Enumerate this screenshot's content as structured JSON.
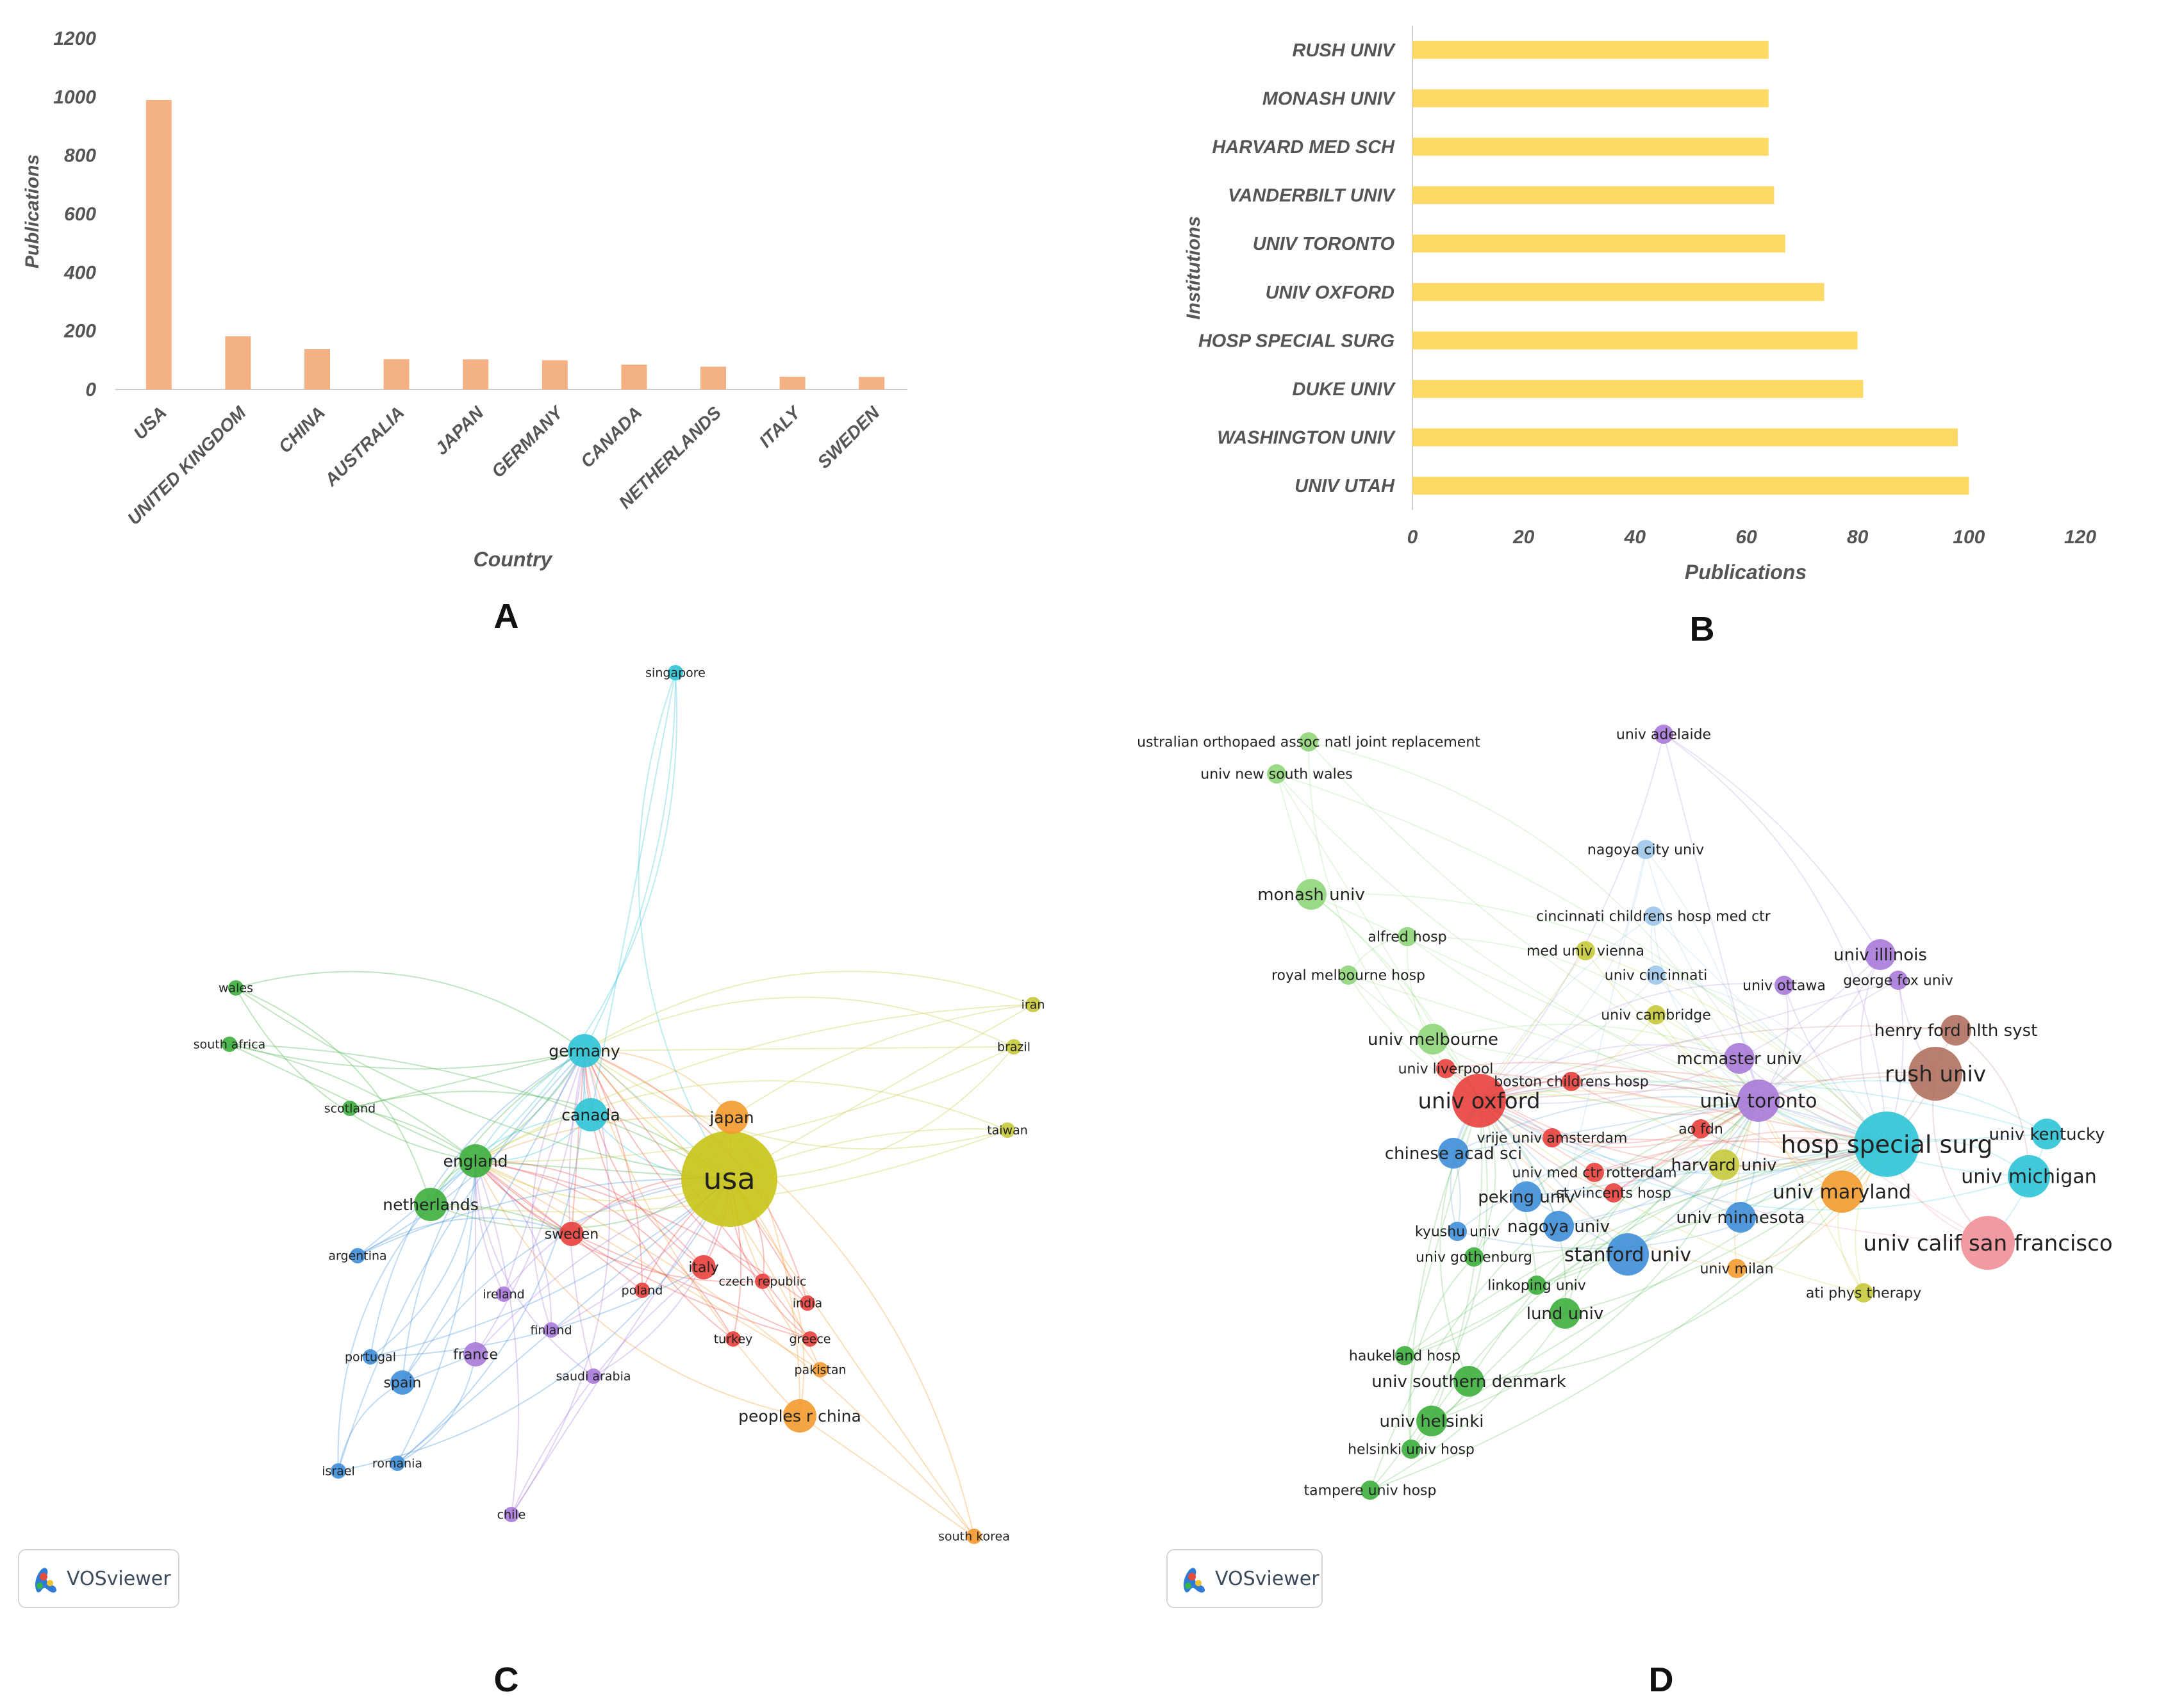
{
  "charts": {
    "A": {
      "type": "bar",
      "categories": [
        "USA",
        "UNITED KINGDOM",
        "CHINA",
        "AUSTRALIA",
        "JAPAN",
        "GERMANY",
        "CANADA",
        "NETHERLANDS",
        "ITALY",
        "SWEDEN"
      ],
      "values": [
        990,
        182,
        138,
        104,
        103,
        100,
        85,
        78,
        44,
        43
      ],
      "xlabel": "Country",
      "ylabel": "Publications",
      "ylim": [
        0,
        1200
      ],
      "yticks": [
        0,
        200,
        400,
        600,
        800,
        1000,
        1200
      ],
      "color": "#f4b183",
      "panel_label": "A"
    },
    "B": {
      "type": "bar-horizontal",
      "categories": [
        "RUSH UNIV",
        "MONASH UNIV",
        "HARVARD MED SCH",
        "VANDERBILT UNIV",
        "UNIV TORONTO",
        "UNIV OXFORD",
        "HOSP SPECIAL SURG",
        "DUKE UNIV",
        "WASHINGTON UNIV",
        "UNIV UTAH"
      ],
      "values": [
        64,
        64,
        64,
        65,
        67,
        74,
        80,
        81,
        98,
        100
      ],
      "xlabel": "Publications",
      "ylabel": "Institutions",
      "xlim": [
        0,
        120
      ],
      "xticks": [
        0,
        20,
        40,
        60,
        80,
        100,
        120
      ],
      "color": "#ffd966",
      "panel_label": "B"
    },
    "C": {
      "type": "network",
      "panel_label": "C",
      "brand": "VOSviewer",
      "nodes": [
        {
          "label": "usa",
          "cluster": "yellow",
          "weight": 10
        },
        {
          "label": "england",
          "cluster": "green",
          "weight": 3
        },
        {
          "label": "netherlands",
          "cluster": "green",
          "weight": 3
        },
        {
          "label": "germany",
          "cluster": "cyan",
          "weight": 3
        },
        {
          "label": "canada",
          "cluster": "cyan",
          "weight": 3
        },
        {
          "label": "japan",
          "cluster": "orange",
          "weight": 3
        },
        {
          "label": "sweden",
          "cluster": "red",
          "weight": 2
        },
        {
          "label": "italy",
          "cluster": "red",
          "weight": 2
        },
        {
          "label": "poland",
          "cluster": "red",
          "weight": 1
        },
        {
          "label": "czech republic",
          "cluster": "red",
          "weight": 1
        },
        {
          "label": "india",
          "cluster": "red",
          "weight": 1
        },
        {
          "label": "greece",
          "cluster": "red",
          "weight": 1
        },
        {
          "label": "turkey",
          "cluster": "red",
          "weight": 1
        },
        {
          "label": "pakistan",
          "cluster": "orange",
          "weight": 1
        },
        {
          "label": "peoples r china",
          "cluster": "orange",
          "weight": 3
        },
        {
          "label": "south korea",
          "cluster": "orange",
          "weight": 1
        },
        {
          "label": "ireland",
          "cluster": "purple",
          "weight": 1
        },
        {
          "label": "finland",
          "cluster": "purple",
          "weight": 1
        },
        {
          "label": "france",
          "cluster": "purple",
          "weight": 2
        },
        {
          "label": "saudi arabia",
          "cluster": "purple",
          "weight": 1
        },
        {
          "label": "chile",
          "cluster": "purple",
          "weight": 1
        },
        {
          "label": "spain",
          "cluster": "blue",
          "weight": 2
        },
        {
          "label": "portugal",
          "cluster": "blue",
          "weight": 1
        },
        {
          "label": "argentina",
          "cluster": "blue",
          "weight": 1
        },
        {
          "label": "israel",
          "cluster": "blue",
          "weight": 1
        },
        {
          "label": "romania",
          "cluster": "blue",
          "weight": 1
        },
        {
          "label": "scotland",
          "cluster": "green",
          "weight": 1
        },
        {
          "label": "wales",
          "cluster": "green",
          "weight": 1
        },
        {
          "label": "south africa",
          "cluster": "green",
          "weight": 1
        },
        {
          "label": "singapore",
          "cluster": "cyan",
          "weight": 1
        },
        {
          "label": "iran",
          "cluster": "olive",
          "weight": 1
        },
        {
          "label": "brazil",
          "cluster": "olive",
          "weight": 1
        },
        {
          "label": "taiwan",
          "cluster": "olive",
          "weight": 1
        }
      ]
    },
    "D": {
      "type": "network",
      "panel_label": "D",
      "brand": "VOSviewer",
      "nodes": [
        {
          "label": "univ adelaide",
          "cluster": "purple",
          "weight": 1
        },
        {
          "label": "ustralian orthopaed assoc natl joint replacement",
          "cluster": "lightgreen",
          "weight": 1
        },
        {
          "label": "univ new south wales",
          "cluster": "lightgreen",
          "weight": 1
        },
        {
          "label": "nagoya city univ",
          "cluster": "lightblue",
          "weight": 1
        },
        {
          "label": "cincinnati childrens hosp med ctr",
          "cluster": "lightblue",
          "weight": 1
        },
        {
          "label": "monash univ",
          "cluster": "lightgreen",
          "weight": 2
        },
        {
          "label": "alfred hosp",
          "cluster": "lightgreen",
          "weight": 1
        },
        {
          "label": "med univ vienna",
          "cluster": "olive",
          "weight": 1
        },
        {
          "label": "univ illinois",
          "cluster": "purple",
          "weight": 2
        },
        {
          "label": "royal melbourne hosp",
          "cluster": "lightgreen",
          "weight": 1
        },
        {
          "label": "univ cincinnati",
          "cluster": "lightblue",
          "weight": 1
        },
        {
          "label": "univ ottawa",
          "cluster": "purple",
          "weight": 1
        },
        {
          "label": "george fox univ",
          "cluster": "purple",
          "weight": 1
        },
        {
          "label": "univ cambridge",
          "cluster": "olive",
          "weight": 1
        },
        {
          "label": "henry ford hlth syst",
          "cluster": "brown",
          "weight": 2
        },
        {
          "label": "univ melbourne",
          "cluster": "lightgreen",
          "weight": 2
        },
        {
          "label": "mcmaster univ",
          "cluster": "purple",
          "weight": 2
        },
        {
          "label": "rush univ",
          "cluster": "brown",
          "weight": 4
        },
        {
          "label": "univ liverpool",
          "cluster": "red",
          "weight": 1
        },
        {
          "label": "boston childrens hosp",
          "cluster": "red",
          "weight": 1
        },
        {
          "label": "univ oxford",
          "cluster": "red",
          "weight": 4
        },
        {
          "label": "univ toronto",
          "cluster": "purple",
          "weight": 3
        },
        {
          "label": "ao fdn",
          "cluster": "red",
          "weight": 1
        },
        {
          "label": "vrije univ amsterdam",
          "cluster": "red",
          "weight": 1
        },
        {
          "label": "hosp special surg",
          "cluster": "cyan",
          "weight": 5
        },
        {
          "label": "univ kentucky",
          "cluster": "cyan",
          "weight": 2
        },
        {
          "label": "chinese acad sci",
          "cluster": "blue",
          "weight": 2
        },
        {
          "label": "harvard univ",
          "cluster": "olive",
          "weight": 2
        },
        {
          "label": "univ med ctr rotterdam",
          "cluster": "red",
          "weight": 1
        },
        {
          "label": "univ michigan",
          "cluster": "cyan",
          "weight": 3
        },
        {
          "label": "peking univ",
          "cluster": "blue",
          "weight": 2
        },
        {
          "label": "st vincents hosp",
          "cluster": "red",
          "weight": 1
        },
        {
          "label": "univ maryland",
          "cluster": "orange",
          "weight": 3
        },
        {
          "label": "univ minnesota",
          "cluster": "blue",
          "weight": 2
        },
        {
          "label": "kyushu univ",
          "cluster": "blue",
          "weight": 1
        },
        {
          "label": "nagoya univ",
          "cluster": "blue",
          "weight": 2
        },
        {
          "label": "univ calif san francisco",
          "cluster": "pink",
          "weight": 4
        },
        {
          "label": "univ gothenburg",
          "cluster": "green",
          "weight": 1
        },
        {
          "label": "stanford univ",
          "cluster": "blue",
          "weight": 3
        },
        {
          "label": "univ milan",
          "cluster": "orange",
          "weight": 1
        },
        {
          "label": "linkoping univ",
          "cluster": "green",
          "weight": 1
        },
        {
          "label": "ati phys therapy",
          "cluster": "olive",
          "weight": 1
        },
        {
          "label": "lund univ",
          "cluster": "green",
          "weight": 2
        },
        {
          "label": "haukeland hosp",
          "cluster": "green",
          "weight": 1
        },
        {
          "label": "univ southern denmark",
          "cluster": "green",
          "weight": 2
        },
        {
          "label": "univ helsinki",
          "cluster": "green",
          "weight": 2
        },
        {
          "label": "helsinki univ hosp",
          "cluster": "green",
          "weight": 1
        },
        {
          "label": "tampere univ hosp",
          "cluster": "green",
          "weight": 1
        }
      ]
    }
  }
}
